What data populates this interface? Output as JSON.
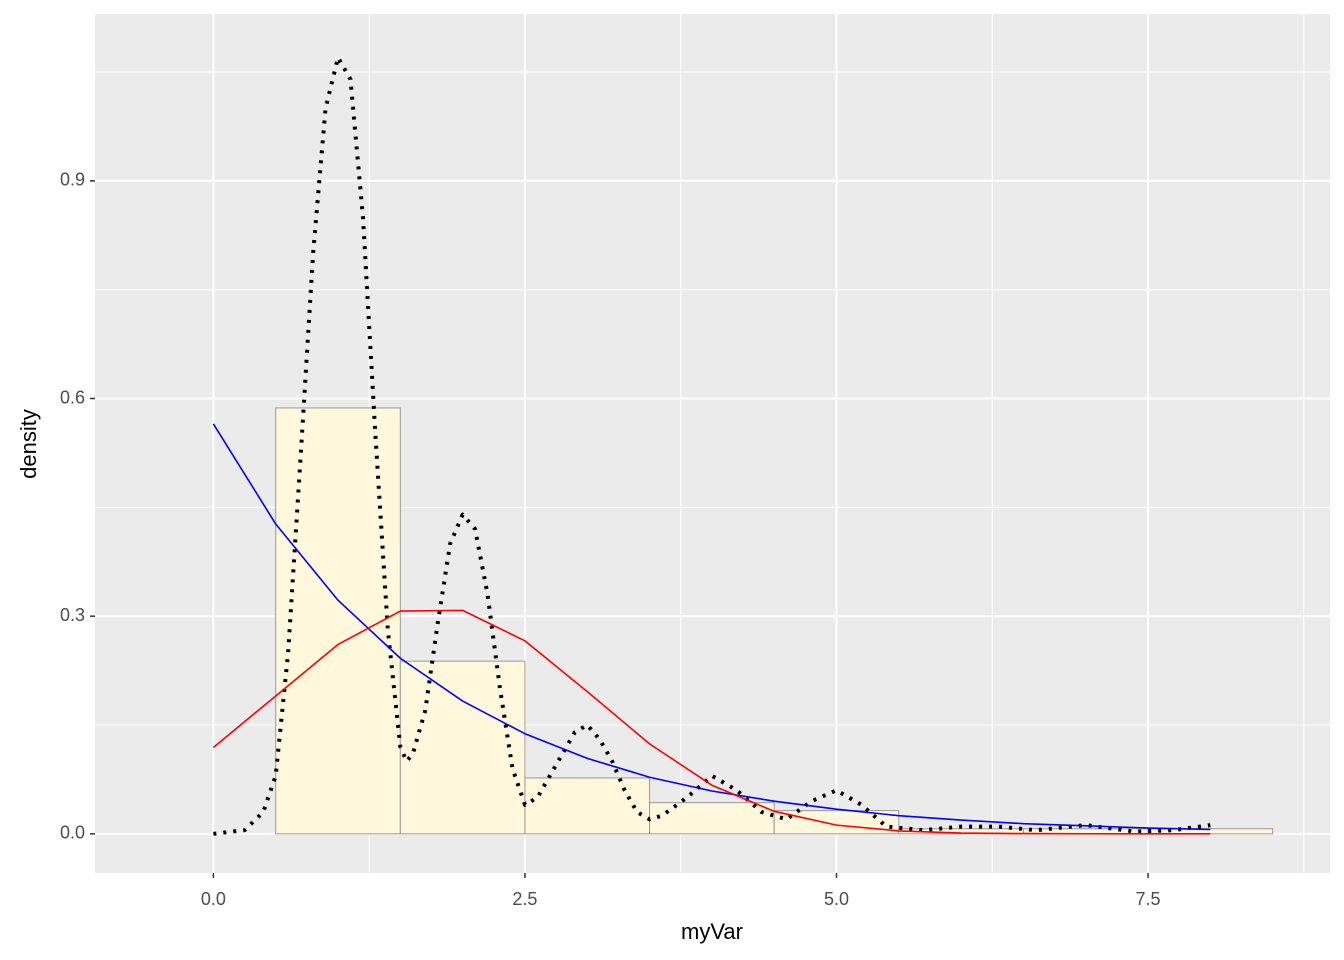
{
  "chart_data": {
    "type": "histogram",
    "x_label": "myVar",
    "y_label": "density",
    "bins": [
      -0.5,
      0.5,
      1.5,
      2.5,
      3.5,
      4.5,
      5.5,
      6.5,
      7.5,
      8.5
    ],
    "values": [
      0,
      0.587,
      0.238,
      0.077,
      0.043,
      0.032,
      0.007,
      0.007,
      0.007
    ],
    "color": "#fff8dc",
    "edge_color": "#999999",
    "xlim": [
      -0.95,
      8.96
    ],
    "ylim": [
      -0.054,
      1.13
    ],
    "xticks": [
      {
        "value": 0,
        "label": "0.0"
      },
      2.5,
      {
        "value": 5,
        "label": "5.0"
      },
      7.5
    ],
    "yticks": [
      {
        "value": 0,
        "label": "0.0"
      },
      0.3,
      0.6,
      0.9
    ],
    "grid": true,
    "series": [
      {
        "color": "#000000",
        "line_style": "dotted",
        "x": [
          0,
          0.25,
          0.4,
          0.5,
          0.6,
          0.7,
          0.8,
          0.9,
          1.0,
          1.1,
          1.2,
          1.3,
          1.4,
          1.5,
          1.55,
          1.6,
          1.7,
          1.8,
          1.9,
          2.0,
          2.1,
          2.2,
          2.3,
          2.4,
          2.5,
          2.6,
          2.7,
          2.8,
          2.9,
          3.0,
          3.1,
          3.2,
          3.3,
          3.4,
          3.5,
          3.6,
          3.8,
          4.0,
          4.2,
          4.4,
          4.6,
          4.8,
          5.0,
          5.2,
          5.4,
          5.7,
          6.0,
          6.3,
          6.6,
          7.0,
          7.4,
          7.7,
          8.0
        ],
        "values": [
          0,
          0.005,
          0.03,
          0.08,
          0.25,
          0.52,
          0.8,
          1.0,
          1.07,
          1.04,
          0.85,
          0.55,
          0.28,
          0.12,
          0.1,
          0.11,
          0.17,
          0.29,
          0.4,
          0.44,
          0.42,
          0.33,
          0.2,
          0.09,
          0.04,
          0.05,
          0.08,
          0.11,
          0.14,
          0.15,
          0.13,
          0.1,
          0.06,
          0.03,
          0.02,
          0.025,
          0.05,
          0.08,
          0.06,
          0.03,
          0.02,
          0.045,
          0.06,
          0.04,
          0.01,
          0.005,
          0.01,
          0.01,
          0.005,
          0.012,
          0.003,
          0.005,
          0.012
        ]
      },
      {
        "color": "#0000ff",
        "line_style": "solid",
        "x": [
          0,
          0.5,
          1,
          1.5,
          2,
          2.5,
          3,
          3.5,
          4,
          4.5,
          5,
          5.5,
          6,
          6.5,
          7,
          7.5,
          8
        ],
        "values": [
          0.565,
          0.427,
          0.322,
          0.242,
          0.183,
          0.138,
          0.104,
          0.078,
          0.059,
          0.045,
          0.034,
          0.025,
          0.019,
          0.014,
          0.011,
          0.008,
          0.006
        ]
      },
      {
        "color": "#ff0000",
        "line_style": "solid",
        "x": [
          0,
          0.5,
          1,
          1.5,
          2,
          2.5,
          3,
          3.5,
          4,
          4.5,
          5,
          5.5,
          6,
          6.5,
          7,
          7.5,
          8
        ],
        "values": [
          0.119,
          0.19,
          0.261,
          0.307,
          0.308,
          0.266,
          0.196,
          0.124,
          0.067,
          0.031,
          0.012,
          0.004,
          0.001,
          0.0003,
          0.0001,
          0,
          0
        ]
      }
    ]
  }
}
